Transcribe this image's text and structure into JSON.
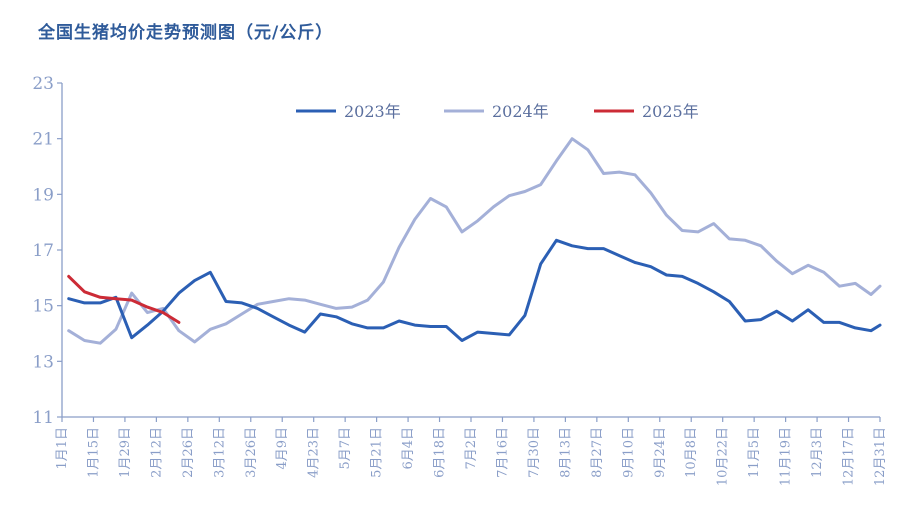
{
  "chart_data": {
    "type": "line",
    "title": "全国生猪均价走势预测图（元/公斤）",
    "xlabel": "",
    "ylabel": "",
    "ylim": [
      11,
      23
    ],
    "yticks": [
      11,
      13,
      15,
      17,
      19,
      21,
      23
    ],
    "x_tick_labels": [
      "1月1日",
      "1月15日",
      "1月29日",
      "2月12日",
      "2月26日",
      "3月12日",
      "3月26日",
      "4月9日",
      "4月23日",
      "5月7日",
      "5月21日",
      "6月4日",
      "6月18日",
      "7月2日",
      "7月16日",
      "7月30日",
      "8月13日",
      "8月27日",
      "9月10日",
      "9月24日",
      "10月8日",
      "10月22日",
      "11月5日",
      "11月19日",
      "12月3日",
      "12月17日",
      "12月31日"
    ],
    "x_unit": "day of year",
    "x_range": [
      1,
      365
    ],
    "grid": false,
    "legend_position": "top-center",
    "series": [
      {
        "name": "2023年",
        "color": "#2b5fb4",
        "x": [
          4,
          11,
          18,
          25,
          32,
          39,
          46,
          53,
          60,
          67,
          74,
          81,
          88,
          95,
          102,
          109,
          116,
          123,
          130,
          137,
          144,
          151,
          158,
          165,
          172,
          179,
          186,
          193,
          200,
          207,
          214,
          221,
          228,
          235,
          242,
          249,
          256,
          263,
          270,
          277,
          284,
          291,
          298,
          305,
          312,
          319,
          326,
          333,
          340,
          347,
          354,
          361,
          365
        ],
        "values": [
          15.25,
          15.1,
          15.1,
          15.3,
          13.85,
          14.3,
          14.8,
          15.45,
          15.9,
          16.2,
          15.15,
          15.1,
          14.9,
          14.6,
          14.3,
          14.05,
          14.7,
          14.6,
          14.35,
          14.2,
          14.2,
          14.45,
          14.3,
          14.25,
          14.25,
          13.75,
          14.05,
          14.0,
          13.95,
          14.65,
          16.5,
          17.35,
          17.15,
          17.05,
          17.05,
          16.8,
          16.55,
          16.4,
          16.1,
          16.05,
          15.8,
          15.5,
          15.15,
          14.45,
          14.5,
          14.8,
          14.45,
          14.85,
          14.4,
          14.4,
          14.2,
          14.1,
          14.3
        ]
      },
      {
        "name": "2024年",
        "color": "#a4b0d8",
        "x": [
          4,
          11,
          18,
          25,
          32,
          39,
          46,
          53,
          60,
          67,
          74,
          81,
          88,
          95,
          102,
          109,
          116,
          123,
          130,
          137,
          144,
          151,
          158,
          165,
          172,
          179,
          186,
          193,
          200,
          207,
          214,
          221,
          228,
          235,
          242,
          249,
          256,
          263,
          270,
          277,
          284,
          291,
          298,
          305,
          312,
          319,
          326,
          333,
          340,
          347,
          354,
          361,
          365
        ],
        "values": [
          14.1,
          13.75,
          13.65,
          14.15,
          15.45,
          14.75,
          14.9,
          14.1,
          13.7,
          14.15,
          14.35,
          14.7,
          15.05,
          15.15,
          15.25,
          15.2,
          15.05,
          14.9,
          14.95,
          15.2,
          15.85,
          17.1,
          18.1,
          18.85,
          18.55,
          17.65,
          18.05,
          18.55,
          18.95,
          19.1,
          19.35,
          20.2,
          21.0,
          20.6,
          19.75,
          19.8,
          19.7,
          19.05,
          18.25,
          17.7,
          17.65,
          17.95,
          17.4,
          17.35,
          17.15,
          16.6,
          16.15,
          16.45,
          16.2,
          15.7,
          15.8,
          15.4,
          15.7
        ]
      },
      {
        "name": "2025年",
        "color": "#cc2b36",
        "x": [
          4,
          11,
          18,
          25,
          32,
          39,
          46,
          53
        ],
        "values": [
          16.05,
          15.5,
          15.3,
          15.25,
          15.2,
          14.95,
          14.75,
          14.4
        ]
      }
    ]
  }
}
